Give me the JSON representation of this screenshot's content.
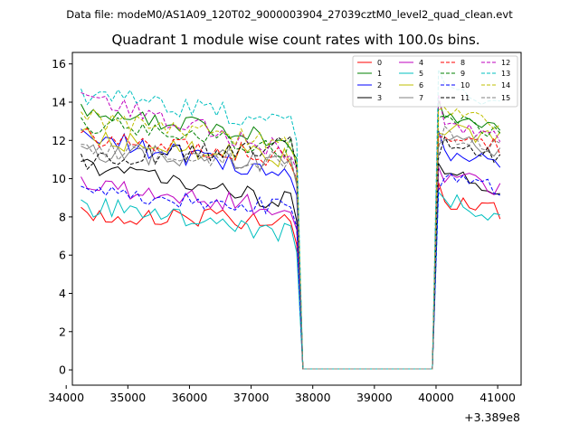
{
  "header": {
    "data_file": "Data file: modeM0/AS1A09_120T02_9000003904_27039cztM0_level2_quad_clean.evt"
  },
  "chart_data": {
    "type": "line",
    "title": "Quadrant 1 module wise count rates with 100.0s bins.",
    "xlabel": "",
    "ylabel": "",
    "x_offset_label": "+3.389e8",
    "xlim": [
      34100,
      41380
    ],
    "ylim": [
      -0.8,
      16.6
    ],
    "x_ticks": [
      34000,
      35000,
      36000,
      37000,
      38000,
      39000,
      40000,
      41000
    ],
    "x_tick_labels": [
      "34000",
      "35000",
      "36000",
      "37000",
      "38000",
      "39000",
      "40000",
      "41000"
    ],
    "y_ticks": [
      0,
      2,
      4,
      6,
      8,
      10,
      12,
      14,
      16
    ],
    "y_tick_labels": [
      "0",
      "2",
      "4",
      "6",
      "8",
      "10",
      "12",
      "14",
      "16"
    ],
    "grid": false,
    "legend_location": "upper-right",
    "legend_columns": 4,
    "segments": [
      {
        "x_start": 34240,
        "x_end": 37640,
        "step": 100
      },
      {
        "x_start": 37740,
        "x_end": 37840,
        "step": 100
      },
      {
        "x_start": 39940,
        "x_end": 40040,
        "step": 100
      },
      {
        "x_start": 40140,
        "x_end": 41040,
        "step": 100
      }
    ],
    "series": [
      {
        "name": "0",
        "color": "#ff0000",
        "dash": "solid",
        "level": 8.2,
        "drop": 0.5,
        "end_level": 8.0,
        "end_rise": 0.3,
        "peak": 9.8,
        "seed": 1
      },
      {
        "name": "1",
        "color": "#008000",
        "dash": "solid",
        "level": 13.6,
        "drop": 1.5,
        "end_level": 12.6,
        "end_rise": 0.0,
        "peak": 14.1,
        "seed": 2
      },
      {
        "name": "2",
        "color": "#0000ff",
        "dash": "solid",
        "level": 12.3,
        "drop": 2.2,
        "end_level": 10.6,
        "end_rise": 0.3,
        "peak": 12.5,
        "seed": 3
      },
      {
        "name": "3",
        "color": "#000000",
        "dash": "solid",
        "level": 10.6,
        "drop": 1.8,
        "end_level": 9.6,
        "end_rise": -0.4,
        "peak": 10.8,
        "seed": 4
      },
      {
        "name": "4",
        "color": "#bf00bf",
        "dash": "solid",
        "level": 9.8,
        "drop": 1.4,
        "end_level": 9.4,
        "end_rise": 0.0,
        "peak": 10.6,
        "seed": 5
      },
      {
        "name": "5",
        "color": "#00bfbf",
        "dash": "solid",
        "level": 8.6,
        "drop": 1.4,
        "end_level": 8.2,
        "end_rise": -0.2,
        "peak": 9.3,
        "seed": 6
      },
      {
        "name": "6",
        "color": "#bfbf00",
        "dash": "solid",
        "level": 12.2,
        "drop": 1.2,
        "end_level": 11.8,
        "end_rise": 0.2,
        "peak": 12.4,
        "seed": 7
      },
      {
        "name": "7",
        "color": "#808080",
        "dash": "solid",
        "level": 11.4,
        "drop": 0.6,
        "end_level": 11.2,
        "end_rise": 0.2,
        "peak": 11.8,
        "seed": 8
      },
      {
        "name": "8",
        "color": "#ff0000",
        "dash": "dashed",
        "level": 12.1,
        "drop": 1.0,
        "end_level": 11.6,
        "end_rise": 0.0,
        "peak": 12.2,
        "seed": 9
      },
      {
        "name": "9",
        "color": "#008000",
        "dash": "dashed",
        "level": 12.9,
        "drop": 1.3,
        "end_level": 12.4,
        "end_rise": 0.0,
        "peak": 13.2,
        "seed": 10
      },
      {
        "name": "10",
        "color": "#0000ff",
        "dash": "dashed",
        "level": 9.3,
        "drop": 0.7,
        "end_level": 9.4,
        "end_rise": 0.0,
        "peak": 9.4,
        "seed": 11
      },
      {
        "name": "11",
        "color": "#000000",
        "dash": "dashed",
        "level": 11.0,
        "drop": -0.8,
        "end_level": 11.2,
        "end_rise": 0.0,
        "peak": 11.1,
        "seed": 12
      },
      {
        "name": "12",
        "color": "#bf00bf",
        "dash": "dashed",
        "level": 14.2,
        "drop": 2.8,
        "end_level": 12.1,
        "end_rise": 0.0,
        "peak": 14.4,
        "seed": 13
      },
      {
        "name": "13",
        "color": "#00bfbf",
        "dash": "dashed",
        "level": 14.4,
        "drop": 1.4,
        "end_level": 13.9,
        "end_rise": 0.0,
        "peak": 15.7,
        "seed": 14
      },
      {
        "name": "14",
        "color": "#bfbf00",
        "dash": "dashed",
        "level": 13.2,
        "drop": 1.3,
        "end_level": 12.9,
        "end_rise": 0.0,
        "peak": 13.6,
        "seed": 15
      },
      {
        "name": "15",
        "color": "#808080",
        "dash": "dashed",
        "level": 11.5,
        "drop": 0.6,
        "end_level": 11.6,
        "end_rise": 0.0,
        "peak": 11.6,
        "seed": 16
      }
    ]
  }
}
